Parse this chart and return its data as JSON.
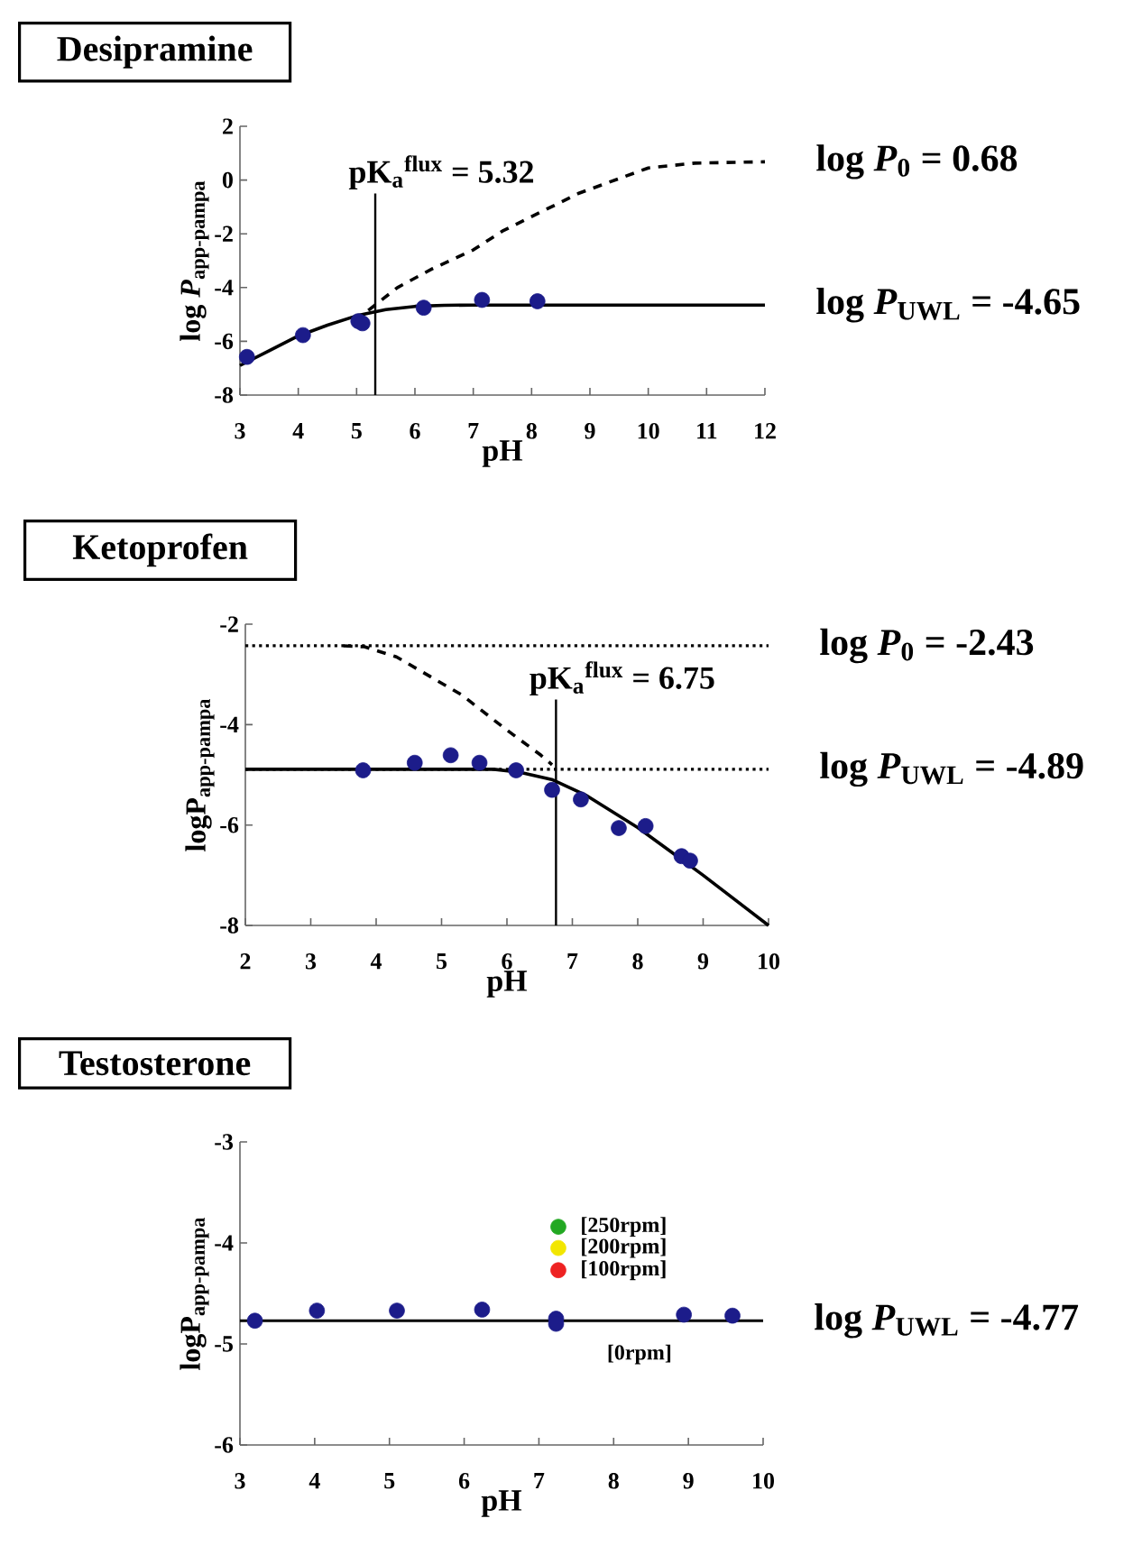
{
  "chart_data": [
    {
      "type": "scatter",
      "title": "Desipramine",
      "xlabel": "pH",
      "ylabel": "log *P*$_{app-pampa}$",
      "xlim": [
        3,
        12
      ],
      "ylim": [
        -8,
        2
      ],
      "xticks": [
        3,
        4,
        5,
        6,
        7,
        8,
        9,
        10,
        11,
        12
      ],
      "yticks": [
        -8,
        -6,
        -4,
        -2,
        0,
        2
      ],
      "series": [
        {
          "marker": "circle",
          "color": "#1c1c8a",
          "x": [
            3.12,
            4.08,
            5.03,
            5.1,
            6.15,
            7.15,
            8.1
          ],
          "values": [
            -6.58,
            -5.77,
            -5.25,
            -5.33,
            -4.75,
            -4.46,
            -4.51
          ]
        },
        {
          "type": "line",
          "marker": "none",
          "line_style": "solid",
          "color": "#000000",
          "x": [
            3,
            3.5,
            4,
            4.5,
            5,
            5.5,
            6,
            6.5,
            7,
            12
          ],
          "values": [
            -6.9,
            -6.35,
            -5.8,
            -5.4,
            -5.05,
            -4.82,
            -4.7,
            -4.66,
            -4.65,
            -4.65
          ]
        },
        {
          "type": "line",
          "marker": "none",
          "line_style": "dashed",
          "color": "#000000",
          "x": [
            5.2,
            5.7,
            6.3,
            7,
            7.5,
            8.8,
            10,
            10.8,
            12
          ],
          "values": [
            -4.85,
            -4.0,
            -3.3,
            -2.6,
            -1.9,
            -0.5,
            0.45,
            0.63,
            0.68
          ]
        }
      ],
      "ref_lines": [
        {
          "axis": "x",
          "value": 5.32,
          "label": "pK$_{a}$$^{flux}$ = 5.32",
          "color": "#000000",
          "line_style": "solid"
        }
      ],
      "annotations": [
        {
          "text": "log *P*$_{0}$ = 0.68",
          "x": 12,
          "y": 0.68
        },
        {
          "text": "log *P*$_{UWL}$ = -4.65",
          "x": 12,
          "y": -4.65
        }
      ]
    },
    {
      "type": "scatter",
      "title": "Ketoprofen",
      "xlabel": "pH",
      "ylabel": "logP$_{app-pampa}$",
      "xlim": [
        2,
        10
      ],
      "ylim": [
        -8,
        -2
      ],
      "xticks": [
        2,
        3,
        4,
        5,
        6,
        7,
        8,
        9,
        10
      ],
      "yticks": [
        -8,
        -6,
        -4,
        -2
      ],
      "series": [
        {
          "type": "line",
          "marker": "none",
          "line_style": "dashed",
          "color": "#000000",
          "x": [
            3.5,
            3.82,
            4.31,
            5.31,
            5.97,
            6.52,
            6.69
          ],
          "values": [
            -2.43,
            -2.45,
            -2.65,
            -3.41,
            -4.08,
            -4.61,
            -4.8
          ]
        },
        {
          "type": "line",
          "marker": "none",
          "line_style": "solid",
          "color": "#000000",
          "x": [
            2,
            5.8,
            6.2,
            6.7,
            7.2,
            8,
            9,
            10
          ],
          "values": [
            -4.89,
            -4.89,
            -4.95,
            -5.1,
            -5.4,
            -6.05,
            -7.0,
            -8.0
          ]
        },
        {
          "marker": "circle",
          "color": "#1c1c8a",
          "x": [
            3.8,
            4.59,
            5.14,
            5.58,
            6.14,
            6.69,
            7.13,
            7.71,
            8.12,
            8.67,
            8.8
          ],
          "values": [
            -4.91,
            -4.76,
            -4.61,
            -4.76,
            -4.91,
            -5.3,
            -5.49,
            -6.06,
            -6.02,
            -6.62,
            -6.71
          ]
        }
      ],
      "ref_lines": [
        {
          "axis": "y",
          "value": -2.43,
          "label": "log *P*$_{0}$ = -2.43",
          "color": "#000000",
          "line_style": "dotted"
        },
        {
          "axis": "y",
          "value": -4.89,
          "label": "log *P*$_{UWL}$ = -4.89",
          "color": "#000000",
          "line_style": "dotted"
        },
        {
          "axis": "x",
          "value": 6.75,
          "label": "pK$_{a}$$^{flux}$ = 6.75",
          "color": "#000000",
          "line_style": "solid"
        }
      ]
    },
    {
      "type": "scatter",
      "title": "Testosterone",
      "xlabel": "pH",
      "ylabel": "logP$_{app-pampa}$",
      "xlim": [
        3,
        10
      ],
      "ylim": [
        -6,
        -3
      ],
      "xticks": [
        3,
        4,
        5,
        6,
        7,
        8,
        9,
        10
      ],
      "yticks": [
        -6,
        -5,
        -4,
        -3
      ],
      "series": [
        {
          "marker": "circle",
          "color": "#1c1c8a",
          "x": [
            3.2,
            4.03,
            5.1,
            6.24,
            7.23,
            7.23,
            8.94,
            9.59
          ],
          "values": [
            -4.77,
            -4.67,
            -4.67,
            -4.66,
            -4.75,
            -4.8,
            -4.71,
            -4.72
          ]
        },
        {
          "marker": "circle",
          "colors": [
            "#22a822",
            "#f2e600",
            "#ee2222"
          ],
          "x": [
            7.26,
            7.26,
            7.26
          ],
          "values": [
            -3.84,
            -4.05,
            -4.27
          ]
        }
      ],
      "ref_lines": [
        {
          "axis": "y",
          "value": -4.77,
          "label": "log *P*$_{UWL}$ = -4.77",
          "color": "#000000",
          "line_style": "solid"
        }
      ],
      "annotations": [
        {
          "text": "[250rpm]",
          "x": 7.26,
          "y": -3.84
        },
        {
          "text": "[200rpm]",
          "x": 7.26,
          "y": -4.05
        },
        {
          "text": "[100rpm]",
          "x": 7.26,
          "y": -4.27
        },
        {
          "text": "[0rpm]",
          "x": 7.23,
          "y": -4.77
        }
      ]
    }
  ]
}
